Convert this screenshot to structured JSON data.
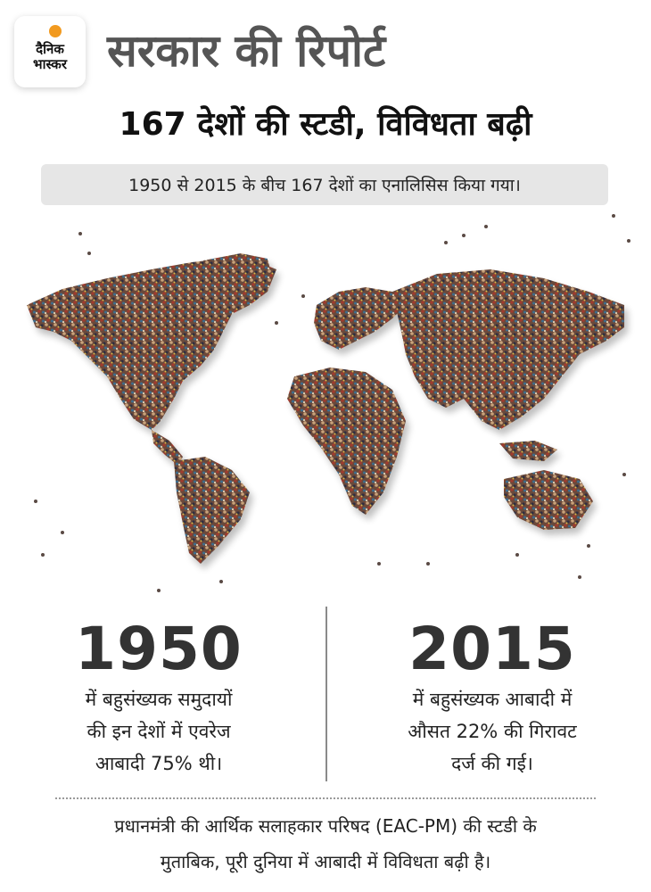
{
  "logo": {
    "line1": "दैनिक",
    "line2": "भास्कर",
    "sun_color": "#f29a1f"
  },
  "headline": "सरकार की रिपोर्ट",
  "subheadline": "167 देशों की स्टडी, विविधता बढ़ी",
  "info_box": "1950 से 2015 के बीच 167 देशों का एनालिसिस किया गया।",
  "image": {
    "description_icon": "world-map-of-people-icon"
  },
  "stats": [
    {
      "year": "1950",
      "lines": [
        "में बहुसंख्यक समुदायों",
        "की इन देशों में एवरेज",
        "आबादी 75% थी।"
      ]
    },
    {
      "year": "2015",
      "lines": [
        "में बहुसंख्यक आबादी में",
        "औसत 22% की गिरावट",
        "दर्ज की गई।"
      ]
    }
  ],
  "footer": {
    "line1": "प्रधानमंत्री की आर्थिक सलाहकार परिषद (EAC-PM) की स्टडी के",
    "line2": "मुताबिक, पूरी दुनिया में आबादी में विविधता बढ़ी है।"
  }
}
